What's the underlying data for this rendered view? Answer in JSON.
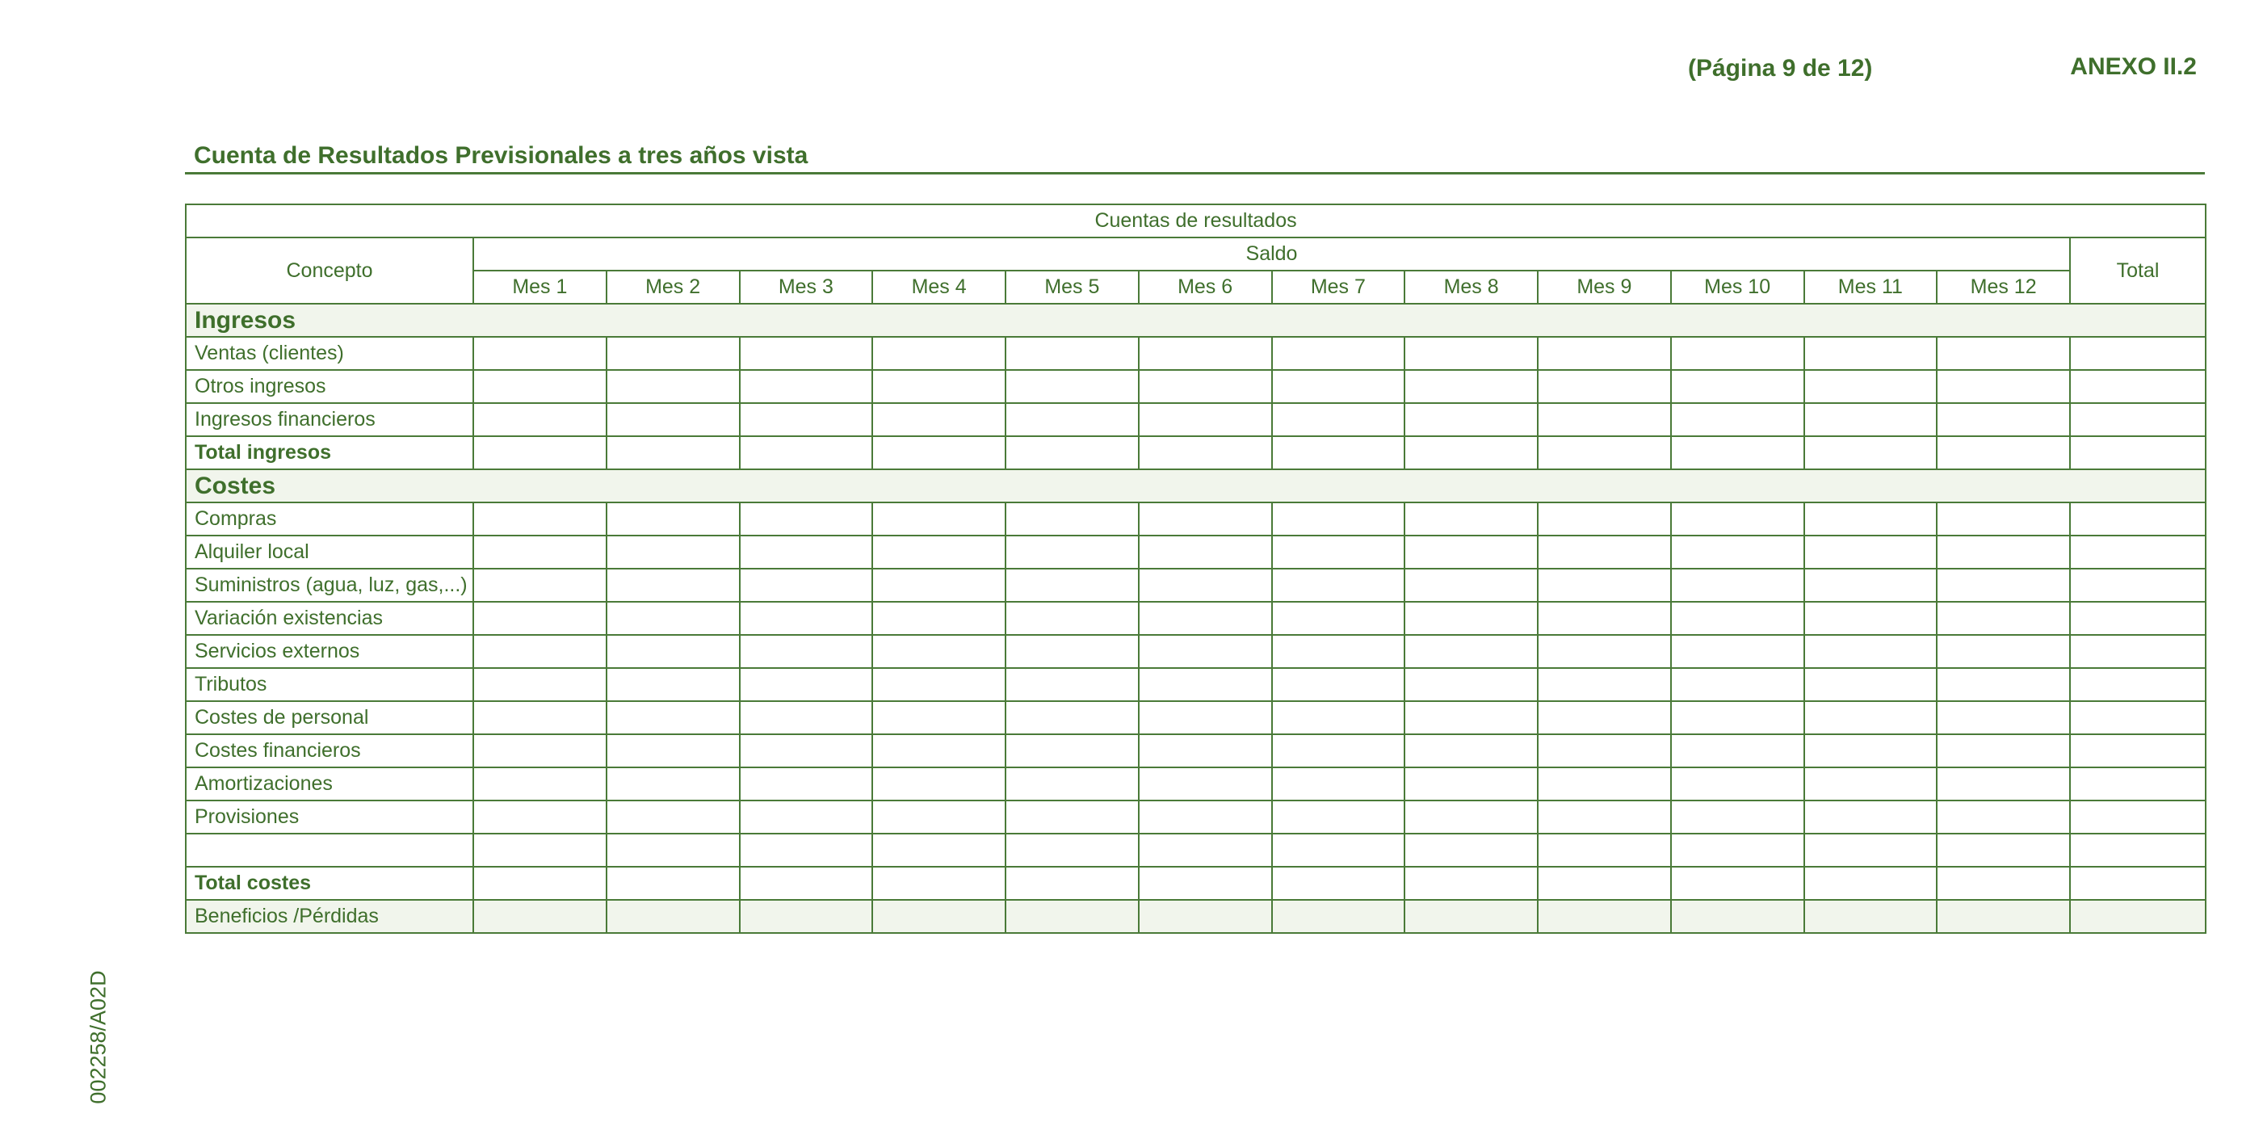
{
  "header": {
    "page": "(Página 9 de 12)",
    "annex": "ANEXO II.2",
    "title": "Cuenta de Resultados Previsionales a tres años vista"
  },
  "table": {
    "group_header": "Cuentas de resultados",
    "concept_header": "Concepto",
    "saldo_header": "Saldo",
    "total_header": "Total",
    "months": [
      "Mes 1",
      "Mes 2",
      "Mes 3",
      "Mes 4",
      "Mes 5",
      "Mes 6",
      "Mes 7",
      "Mes 8",
      "Mes 9",
      "Mes 10",
      "Mes 11",
      "Mes 12"
    ],
    "rows": [
      {
        "label": "Ingresos",
        "style": "section"
      },
      {
        "label": "Ventas (clientes)",
        "style": "normal"
      },
      {
        "label": "Otros ingresos",
        "style": "normal"
      },
      {
        "label": "Ingresos financieros",
        "style": "normal"
      },
      {
        "label": "Total ingresos",
        "style": "bold"
      },
      {
        "label": "Costes",
        "style": "section"
      },
      {
        "label": "Compras",
        "style": "normal"
      },
      {
        "label": "Alquiler local",
        "style": "normal"
      },
      {
        "label": "Suministros (agua, luz, gas,...)",
        "style": "normal"
      },
      {
        "label": "Variación existencias",
        "style": "normal"
      },
      {
        "label": "Servicios externos",
        "style": "normal"
      },
      {
        "label": "Tributos",
        "style": "normal"
      },
      {
        "label": "Costes de personal",
        "style": "normal"
      },
      {
        "label": "Costes financieros",
        "style": "normal"
      },
      {
        "label": "Amortizaciones",
        "style": "normal"
      },
      {
        "label": "Provisiones",
        "style": "normal"
      },
      {
        "label": null,
        "style": "normal"
      },
      {
        "label": "Total costes",
        "style": "bold"
      },
      {
        "label": "Beneficios /Pérdidas",
        "style": "shaded"
      }
    ]
  },
  "side_code": "002258/A02D"
}
